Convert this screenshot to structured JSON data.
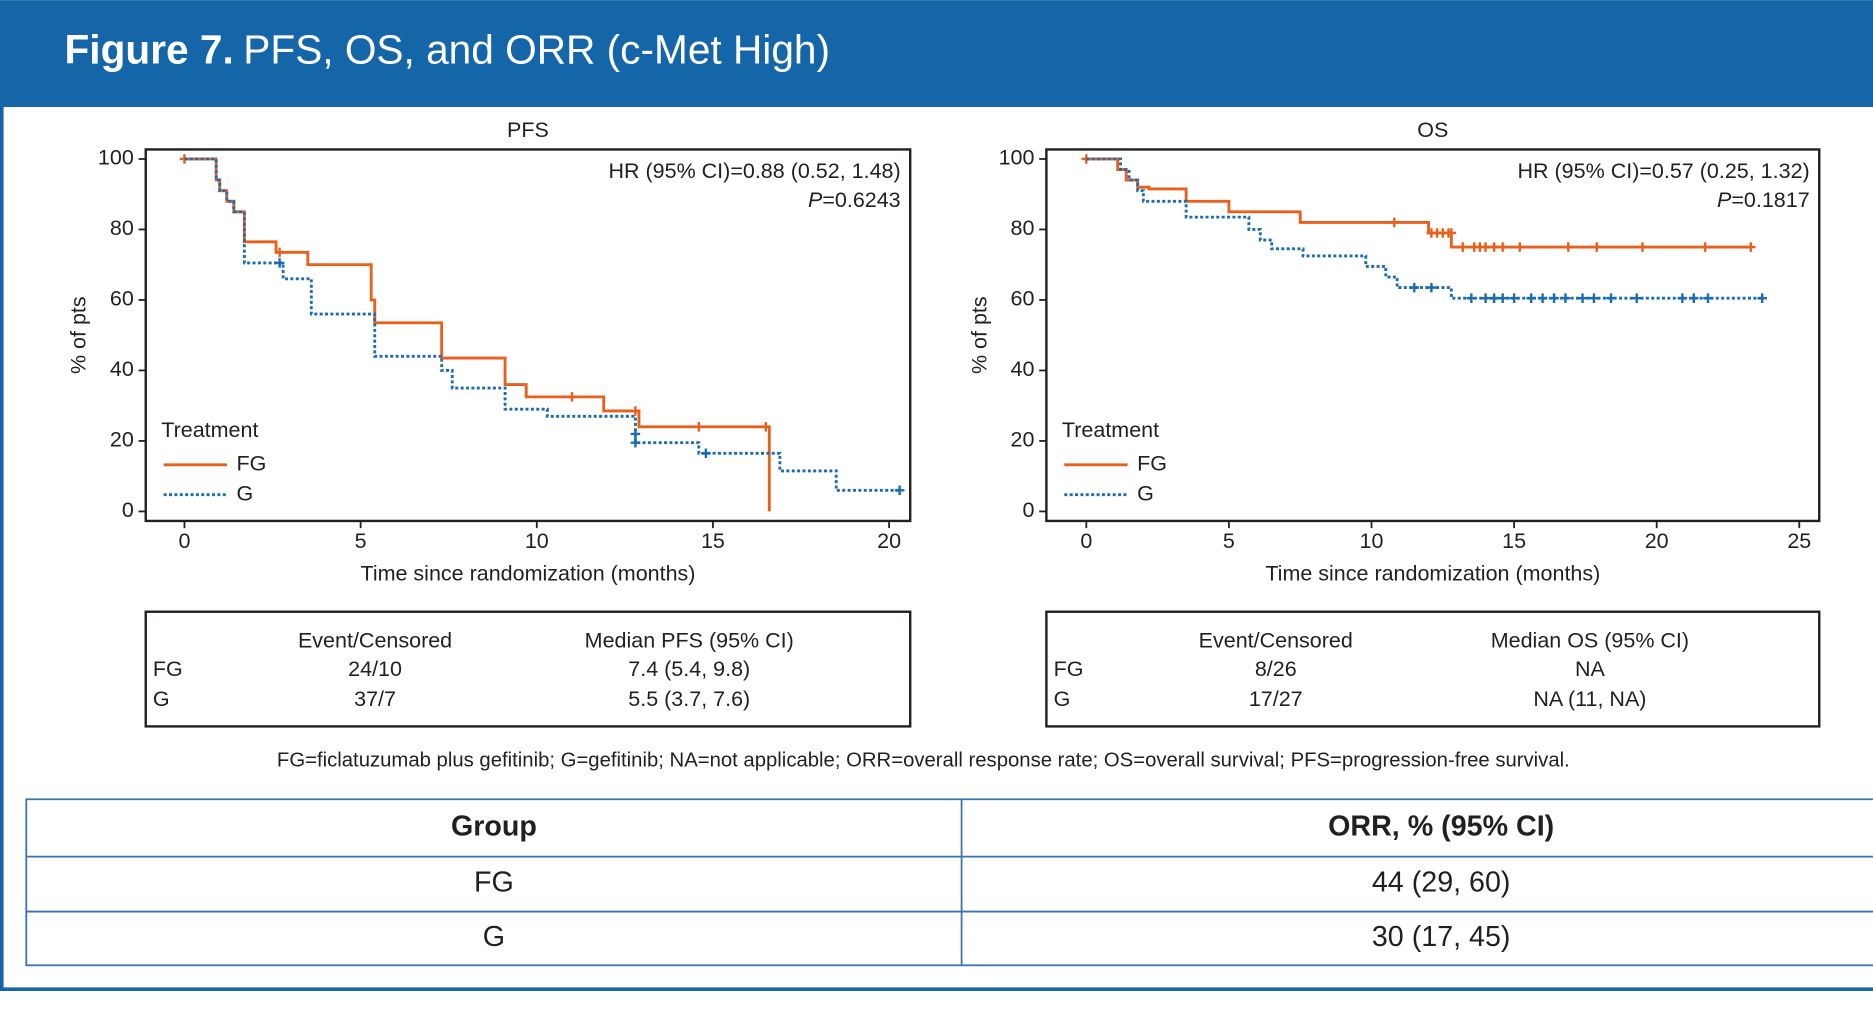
{
  "header": {
    "label": "Figure 7.",
    "title": "PFS, OS, and ORR (c-Met High)"
  },
  "chart_data": [
    {
      "type": "step",
      "title": "PFS",
      "x_label": "Time since randomization (months)",
      "y_label": "% of pts",
      "annotation": {
        "hr": "HR (95% CI)=0.88 (0.52, 1.48)",
        "p_label": "P",
        "p_value": "=0.6243"
      },
      "legend_title": "Treatment",
      "legend": "lower left",
      "xlim": [
        -1.1,
        20.6
      ],
      "xticks": [
        0,
        5,
        10,
        15,
        20
      ],
      "ylim": [
        -2.7,
        102.7
      ],
      "yticks": [
        0,
        20,
        40,
        60,
        80,
        100
      ],
      "series": [
        {
          "name": "FG",
          "color": "#e8601c",
          "dash": "solid",
          "x": [
            0,
            0.9,
            1.0,
            1.2,
            1.4,
            1.7,
            2.6,
            3.5,
            5.3,
            5.4,
            7.3,
            9.1,
            9.7,
            11.9,
            12.9,
            16.6
          ],
          "values": [
            100,
            94,
            91,
            88,
            85,
            76.5,
            73.5,
            70,
            60,
            53.5,
            43.5,
            36,
            32.5,
            28.5,
            24,
            0
          ],
          "censor_x": [
            0,
            2.7,
            11,
            12.8,
            14.6,
            16.5
          ],
          "censor_values": [
            100,
            73.5,
            32.5,
            28.5,
            24,
            24
          ]
        },
        {
          "name": "G",
          "color": "#1b6db0",
          "dash": "dotted",
          "x": [
            0,
            0.9,
            1.0,
            1.2,
            1.4,
            1.7,
            2.8,
            3.6,
            5.4,
            7.3,
            7.6,
            9.1,
            10.3,
            12.8,
            14.6,
            16.9,
            18.5,
            20.3
          ],
          "values": [
            100,
            94,
            91,
            88,
            85,
            70.5,
            66,
            56,
            44,
            40,
            35,
            29,
            27,
            19.5,
            16.5,
            11.5,
            6,
            6
          ],
          "censor_x": [
            2.7,
            12.8,
            12.8,
            14.8,
            20.3
          ],
          "censor_values": [
            70.5,
            22,
            19.5,
            16.5,
            6
          ]
        }
      ],
      "summary": {
        "columns": [
          "Event/Censored",
          "Median PFS (95% CI)"
        ],
        "rows": [
          [
            "FG",
            "24/10",
            "7.4 (5.4, 9.8)"
          ],
          [
            "G",
            "37/7",
            "5.5 (3.7, 7.6)"
          ]
        ]
      }
    },
    {
      "type": "step",
      "title": "OS",
      "x_label": "Time since randomization (months)",
      "y_label": "% of pts",
      "annotation": {
        "hr": "HR (95% CI)=0.57 (0.25, 1.32)",
        "p_label": "P",
        "p_value": "=0.1817"
      },
      "legend_title": "Treatment",
      "legend": "lower left",
      "xlim": [
        -1.4,
        25.7
      ],
      "xticks": [
        0,
        5,
        10,
        15,
        20,
        25
      ],
      "ylim": [
        -2.7,
        102.7
      ],
      "yticks": [
        0,
        20,
        40,
        60,
        80,
        100
      ],
      "series": [
        {
          "name": "FG",
          "color": "#e8601c",
          "dash": "solid",
          "x": [
            0,
            1.1,
            1.4,
            1.8,
            2.2,
            3.5,
            5.0,
            7.5,
            12.0,
            12.8,
            23.3
          ],
          "values": [
            100,
            97,
            94,
            92,
            91.5,
            88,
            85,
            82,
            79,
            75,
            75
          ],
          "censor_x": [
            0,
            10.8,
            12.1,
            12.3,
            12.5,
            12.7,
            12.8,
            13.2,
            13.6,
            13.8,
            14.0,
            14.3,
            14.6,
            15.2,
            16.9,
            17.9,
            19.5,
            21.7,
            23.3
          ],
          "censor_values": [
            100,
            82,
            79,
            79,
            79,
            79,
            79,
            75,
            75,
            75,
            75,
            75,
            75,
            75,
            75,
            75,
            75,
            75,
            75
          ]
        },
        {
          "name": "G",
          "color": "#1b6db0",
          "dash": "dotted",
          "x": [
            0,
            1.2,
            1.5,
            1.8,
            2.0,
            3.5,
            5.7,
            6.1,
            6.5,
            7.6,
            9.8,
            10.5,
            10.9,
            12.8,
            23.7
          ],
          "values": [
            100,
            97,
            94,
            91,
            88,
            83.5,
            80,
            77,
            74.5,
            72.5,
            69.5,
            66.5,
            63.5,
            60.5,
            60.5
          ],
          "censor_x": [
            11.5,
            12.1,
            13.5,
            14.0,
            14.3,
            14.6,
            15.0,
            15.6,
            16.0,
            16.4,
            16.8,
            17.4,
            17.8,
            18.4,
            19.3,
            20.9,
            21.3,
            21.8,
            23.7
          ],
          "censor_values": [
            63.5,
            63.5,
            60.5,
            60.5,
            60.5,
            60.5,
            60.5,
            60.5,
            60.5,
            60.5,
            60.5,
            60.5,
            60.5,
            60.5,
            60.5,
            60.5,
            60.5,
            60.5,
            60.5
          ]
        }
      ],
      "summary": {
        "columns": [
          "Event/Censored",
          "Median OS (95% CI)"
        ],
        "rows": [
          [
            "FG",
            "8/26",
            "NA"
          ],
          [
            "G",
            "17/27",
            "NA (11, NA)"
          ]
        ]
      }
    }
  ],
  "footnote": "FG=ficlatuzumab plus gefitinib; G=gefitinib; NA=not applicable; ORR=overall response rate; OS=overall survival; PFS=progression-free survival.",
  "orr_table": {
    "columns": [
      "Group",
      "ORR, % (95% CI)"
    ],
    "rows": [
      [
        "FG",
        "44 (29, 60)"
      ],
      [
        "G",
        "30 (17, 45)"
      ]
    ]
  }
}
